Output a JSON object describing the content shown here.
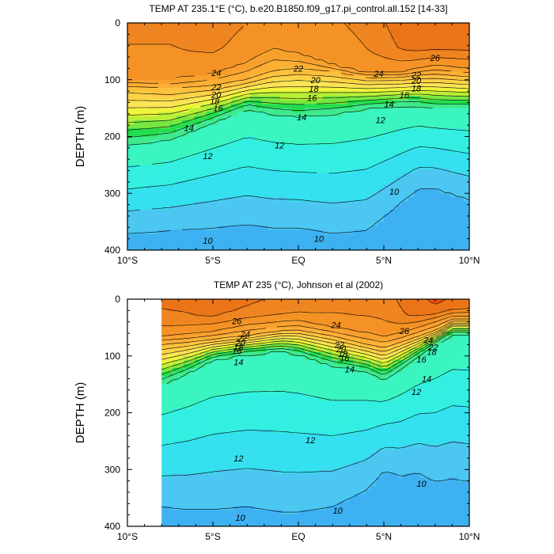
{
  "figure": {
    "colors": {
      "fill_scale": [
        "#1f66e6",
        "#2585f0",
        "#2f9af2",
        "#3db1f2",
        "#4cc7f2",
        "#35e0ef",
        "#32efe1",
        "#3af5c0",
        "#3fe98d",
        "#24dd4d",
        "#77e640",
        "#b9ef38",
        "#eff33a",
        "#fbe455",
        "#fdd246",
        "#fec03d",
        "#fcae35",
        "#f8a02d",
        "#f49225",
        "#ef8520",
        "#ec7418",
        "#ef4e10",
        "#f2380c"
      ],
      "contour_line": "#000000",
      "missing_region": "#ffffff"
    }
  },
  "chart_data": [
    {
      "type": "contour",
      "title": "TEMP AT 235.1°E (°C), b.e20.B1850.f09_g17.pi_control.all.152 [14-33]",
      "xlabel": "",
      "ylabel": "DEPTH (m)",
      "xlim": [
        -10,
        10
      ],
      "ylim": [
        400,
        0
      ],
      "x_ticks": [
        -10,
        -5,
        0,
        5,
        10
      ],
      "x_tick_labels": [
        "10°S",
        "5°S",
        "EQ",
        "5°N",
        "10°N"
      ],
      "y_ticks": [
        0,
        100,
        200,
        300,
        400
      ],
      "y_tick_labels": [
        "0",
        "100",
        "200",
        "300",
        "400"
      ],
      "data_xlim": [
        -10,
        10
      ],
      "contour_interval": 1,
      "contour_labels": [
        {
          "text": "24",
          "x": -4.8,
          "y": 88
        },
        {
          "text": "22",
          "x": -4.8,
          "y": 113
        },
        {
          "text": "20",
          "x": -4.8,
          "y": 126
        },
        {
          "text": "18",
          "x": -4.9,
          "y": 138
        },
        {
          "text": "16",
          "x": -4.7,
          "y": 150
        },
        {
          "text": "14",
          "x": -6.4,
          "y": 185
        },
        {
          "text": "12",
          "x": -5.3,
          "y": 234
        },
        {
          "text": "10",
          "x": -5.3,
          "y": 383
        },
        {
          "text": "22",
          "x": 0,
          "y": 80
        },
        {
          "text": "20",
          "x": 1.0,
          "y": 100
        },
        {
          "text": "18",
          "x": 0.9,
          "y": 116
        },
        {
          "text": "16",
          "x": 0.8,
          "y": 132
        },
        {
          "text": "14",
          "x": 0.2,
          "y": 166
        },
        {
          "text": "12",
          "x": -1.1,
          "y": 215
        },
        {
          "text": "10",
          "x": 1.2,
          "y": 380
        },
        {
          "text": "24",
          "x": 4.7,
          "y": 89
        },
        {
          "text": "22",
          "x": 6.9,
          "y": 91
        },
        {
          "text": "20",
          "x": 6.9,
          "y": 102
        },
        {
          "text": "18",
          "x": 6.9,
          "y": 115
        },
        {
          "text": "16",
          "x": 6.2,
          "y": 127
        },
        {
          "text": "14",
          "x": 5.3,
          "y": 143
        },
        {
          "text": "12",
          "x": 4.8,
          "y": 171
        },
        {
          "text": "26",
          "x": 8.0,
          "y": 61
        },
        {
          "text": "10",
          "x": 5.6,
          "y": 297
        }
      ]
    },
    {
      "type": "contour",
      "title": "TEMP AT 235 (°C), Johnson et al (2002)",
      "xlabel": "",
      "ylabel": "DEPTH (m)",
      "xlim": [
        -10,
        10
      ],
      "ylim": [
        400,
        0
      ],
      "x_ticks": [
        -10,
        -5,
        0,
        5,
        10
      ],
      "x_tick_labels": [
        "10°S",
        "5°S",
        "EQ",
        "5°N",
        "10°N"
      ],
      "y_ticks": [
        0,
        100,
        200,
        300,
        400
      ],
      "y_tick_labels": [
        "0",
        "100",
        "200",
        "300",
        "400"
      ],
      "data_xlim": [
        -8,
        10
      ],
      "contour_interval": 1,
      "contour_labels": [
        {
          "text": "26",
          "x": -3.6,
          "y": 38
        },
        {
          "text": "24",
          "x": -3.1,
          "y": 61
        },
        {
          "text": "22",
          "x": -3.3,
          "y": 69
        },
        {
          "text": "20",
          "x": -3.4,
          "y": 77
        },
        {
          "text": "18",
          "x": -3.5,
          "y": 84
        },
        {
          "text": "16",
          "x": -3.6,
          "y": 91
        },
        {
          "text": "14",
          "x": -3.5,
          "y": 111
        },
        {
          "text": "12",
          "x": -3.5,
          "y": 280
        },
        {
          "text": "10",
          "x": -3.4,
          "y": 385
        },
        {
          "text": "24",
          "x": 2.2,
          "y": 45
        },
        {
          "text": "22",
          "x": 2.4,
          "y": 80
        },
        {
          "text": "20",
          "x": 2.5,
          "y": 88
        },
        {
          "text": "18",
          "x": 2.6,
          "y": 96
        },
        {
          "text": "16",
          "x": 2.7,
          "y": 104
        },
        {
          "text": "14",
          "x": 3.0,
          "y": 123
        },
        {
          "text": "12",
          "x": 0.7,
          "y": 248
        },
        {
          "text": "10",
          "x": 2.3,
          "y": 372
        },
        {
          "text": "26",
          "x": 6.2,
          "y": 56
        },
        {
          "text": "24",
          "x": 7.6,
          "y": 72
        },
        {
          "text": "22",
          "x": 7.9,
          "y": 84
        },
        {
          "text": "18",
          "x": 7.8,
          "y": 93
        },
        {
          "text": "16",
          "x": 7.2,
          "y": 106
        },
        {
          "text": "14",
          "x": 7.5,
          "y": 140
        },
        {
          "text": "12",
          "x": 6.9,
          "y": 163
        },
        {
          "text": "10",
          "x": 7.2,
          "y": 325
        }
      ]
    }
  ]
}
